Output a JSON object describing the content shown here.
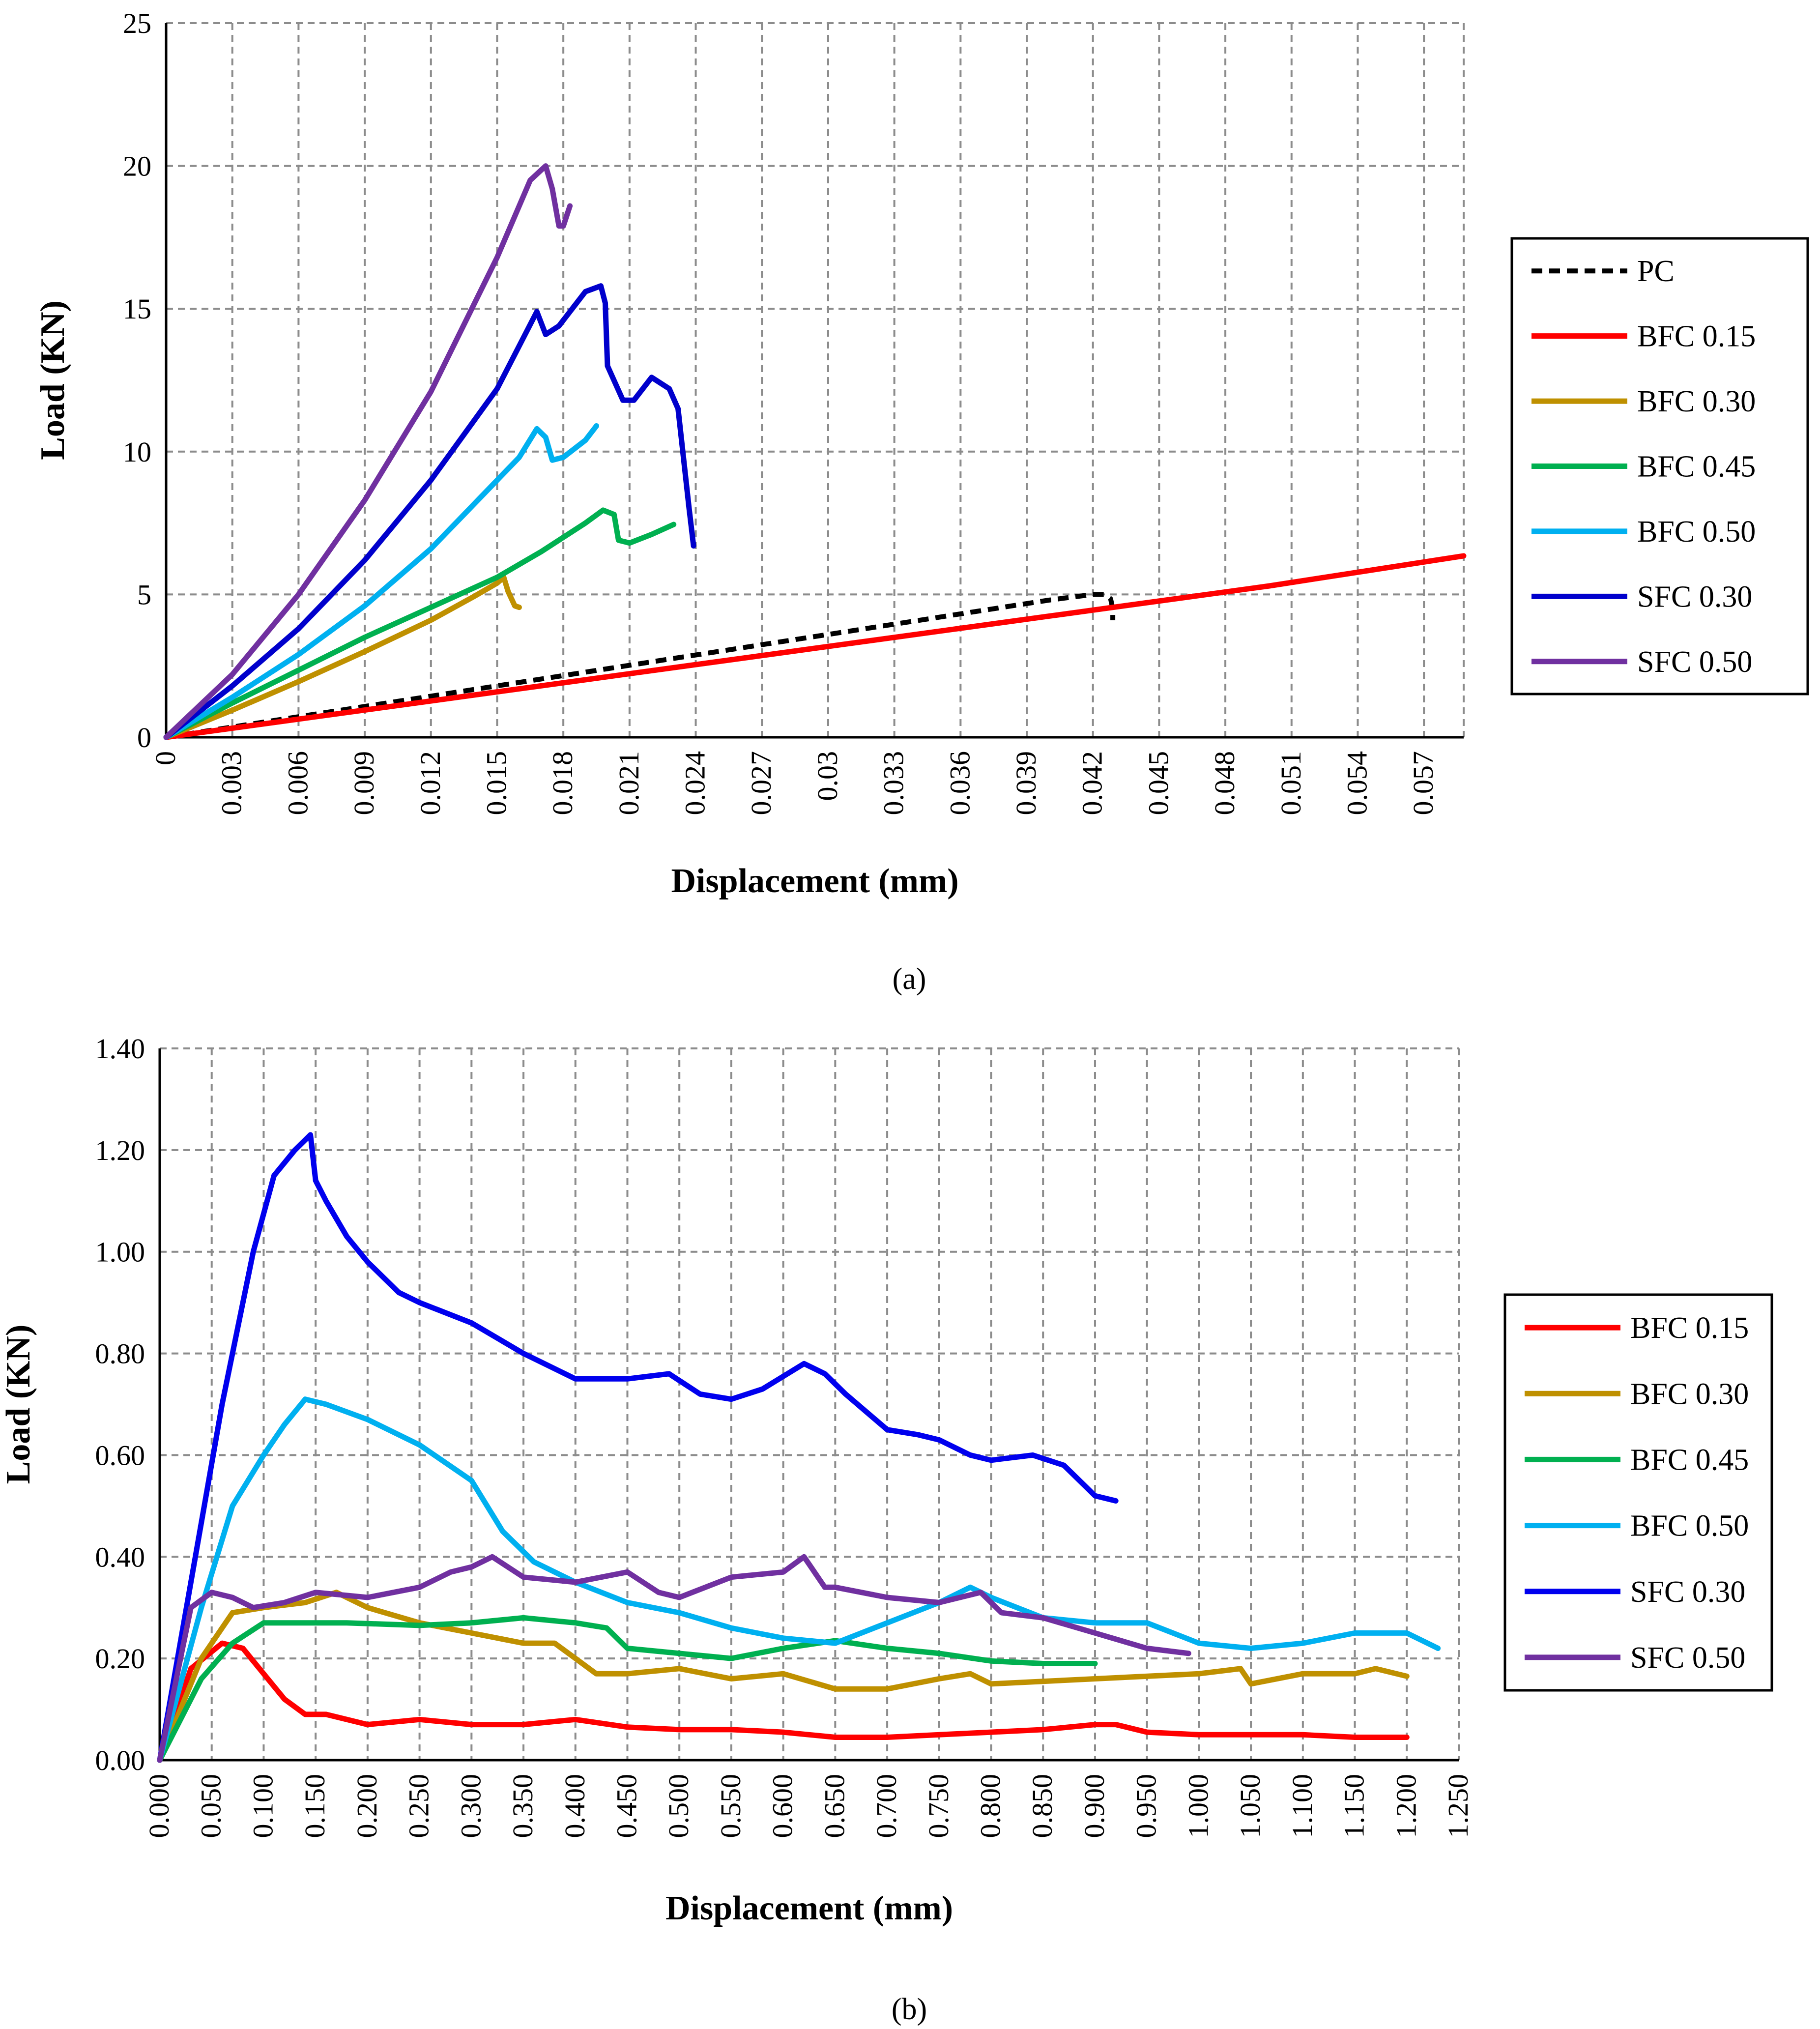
{
  "captions": {
    "a": "(a)",
    "b": "(b)"
  },
  "chart_data": [
    {
      "type": "line",
      "panel": "a",
      "xlabel": "Displacement (mm)",
      "ylabel": "Load (KN)",
      "xlim": [
        0,
        0.0588
      ],
      "ylim": [
        0,
        25
      ],
      "grid": true,
      "legend_position": "right",
      "x_ticks": [
        "0",
        "0.003",
        "0.006",
        "0.009",
        "0.012",
        "0.015",
        "0.018",
        "0.021",
        "0.024",
        "0.027",
        "0.03",
        "0.033",
        "0.036",
        "0.039",
        "0.042",
        "0.045",
        "0.048",
        "0.051",
        "0.054",
        "0.057"
      ],
      "y_ticks": [
        "0",
        "5",
        "10",
        "15",
        "20",
        "25"
      ],
      "series": [
        {
          "name": "PC",
          "color": "#000000",
          "dashed": true,
          "x": [
            0,
            0.005,
            0.01,
            0.015,
            0.02,
            0.025,
            0.03,
            0.035,
            0.04,
            0.042,
            0.0425,
            0.0428,
            0.0429,
            0.0429
          ],
          "y": [
            0,
            0.6,
            1.2,
            1.8,
            2.4,
            3.0,
            3.6,
            4.2,
            4.8,
            5.0,
            5.0,
            4.85,
            4.5,
            4.1
          ]
        },
        {
          "name": "BFC 0.15",
          "color": "#ff0000",
          "dashed": false,
          "x": [
            0,
            0.01,
            0.02,
            0.03,
            0.04,
            0.05,
            0.0588
          ],
          "y": [
            0,
            1.06,
            2.12,
            3.18,
            4.24,
            5.3,
            6.35
          ]
        },
        {
          "name": "BFC 0.30",
          "color": "#bf9000",
          "dashed": false,
          "x": [
            0,
            0.003,
            0.006,
            0.009,
            0.012,
            0.014,
            0.015,
            0.0153,
            0.0155,
            0.0158,
            0.016
          ],
          "y": [
            0,
            0.95,
            1.95,
            3.0,
            4.1,
            4.95,
            5.4,
            5.6,
            5.1,
            4.6,
            4.55
          ]
        },
        {
          "name": "BFC 0.45",
          "color": "#00b050",
          "dashed": false,
          "x": [
            0,
            0.003,
            0.006,
            0.009,
            0.012,
            0.015,
            0.017,
            0.019,
            0.0198,
            0.0203,
            0.0205,
            0.021,
            0.022,
            0.023
          ],
          "y": [
            0,
            1.2,
            2.35,
            3.5,
            4.55,
            5.6,
            6.5,
            7.5,
            7.95,
            7.8,
            6.9,
            6.8,
            7.1,
            7.45
          ]
        },
        {
          "name": "BFC 0.50",
          "color": "#00b0f0",
          "dashed": false,
          "x": [
            0,
            0.003,
            0.006,
            0.009,
            0.012,
            0.014,
            0.016,
            0.0168,
            0.0172,
            0.0175,
            0.018,
            0.019,
            0.0195
          ],
          "y": [
            0,
            1.4,
            2.9,
            4.6,
            6.6,
            8.2,
            9.8,
            10.8,
            10.5,
            9.7,
            9.8,
            10.4,
            10.9
          ]
        },
        {
          "name": "SFC 0.30",
          "color": "#0000cc",
          "dashed": false,
          "x": [
            0,
            0.003,
            0.006,
            0.009,
            0.012,
            0.015,
            0.0168,
            0.0172,
            0.0178,
            0.019,
            0.0197,
            0.0199,
            0.02,
            0.0207,
            0.0212,
            0.022,
            0.0228,
            0.0232,
            0.0237,
            0.0239
          ],
          "y": [
            0,
            1.8,
            3.8,
            6.2,
            9.0,
            12.2,
            14.9,
            14.1,
            14.4,
            15.6,
            15.8,
            15.2,
            13.0,
            11.8,
            11.8,
            12.6,
            12.2,
            11.5,
            8.0,
            6.7
          ]
        },
        {
          "name": "SFC 0.50",
          "color": "#7030a0",
          "dashed": false,
          "x": [
            0,
            0.003,
            0.006,
            0.009,
            0.012,
            0.015,
            0.0165,
            0.0172,
            0.0175,
            0.0178,
            0.018,
            0.0183
          ],
          "y": [
            0,
            2.2,
            5.0,
            8.3,
            12.1,
            16.8,
            19.5,
            20.0,
            19.2,
            17.9,
            17.9,
            18.6
          ]
        }
      ]
    },
    {
      "type": "line",
      "panel": "b",
      "xlabel": "Displacement (mm)",
      "ylabel": "Load (KN)",
      "xlim": [
        0,
        1.25
      ],
      "ylim": [
        0,
        1.4
      ],
      "grid": true,
      "legend_position": "right",
      "x_ticks": [
        "0.000",
        "0.050",
        "0.100",
        "0.150",
        "0.200",
        "0.250",
        "0.300",
        "0.350",
        "0.400",
        "0.450",
        "0.500",
        "0.550",
        "0.600",
        "0.650",
        "0.700",
        "0.750",
        "0.800",
        "0.850",
        "0.900",
        "0.950",
        "1.000",
        "1.050",
        "1.100",
        "1.150",
        "1.200",
        "1.250"
      ],
      "y_ticks": [
        "0.00",
        "0.20",
        "0.40",
        "0.60",
        "0.80",
        "1.00",
        "1.20",
        "1.40"
      ],
      "series": [
        {
          "name": "BFC 0.15",
          "color": "#ff0000",
          "dashed": false,
          "x": [
            0,
            0.03,
            0.06,
            0.08,
            0.1,
            0.12,
            0.14,
            0.16,
            0.2,
            0.25,
            0.3,
            0.35,
            0.4,
            0.45,
            0.5,
            0.55,
            0.6,
            0.65,
            0.7,
            0.75,
            0.8,
            0.85,
            0.9,
            0.92,
            0.95,
            1.0,
            1.05,
            1.1,
            1.15,
            1.2
          ],
          "y": [
            0,
            0.18,
            0.23,
            0.22,
            0.17,
            0.12,
            0.09,
            0.09,
            0.07,
            0.08,
            0.07,
            0.07,
            0.08,
            0.065,
            0.06,
            0.06,
            0.055,
            0.045,
            0.045,
            0.05,
            0.055,
            0.06,
            0.07,
            0.07,
            0.055,
            0.05,
            0.05,
            0.05,
            0.045,
            0.045
          ]
        },
        {
          "name": "BFC 0.30",
          "color": "#bf9000",
          "dashed": false,
          "x": [
            0,
            0.04,
            0.07,
            0.1,
            0.14,
            0.17,
            0.2,
            0.25,
            0.3,
            0.35,
            0.38,
            0.4,
            0.42,
            0.45,
            0.5,
            0.55,
            0.6,
            0.65,
            0.7,
            0.75,
            0.78,
            0.8,
            0.9,
            1.0,
            1.04,
            1.05,
            1.1,
            1.15,
            1.17,
            1.2
          ],
          "y": [
            0,
            0.2,
            0.29,
            0.3,
            0.31,
            0.33,
            0.3,
            0.27,
            0.25,
            0.23,
            0.23,
            0.2,
            0.17,
            0.17,
            0.18,
            0.16,
            0.17,
            0.14,
            0.14,
            0.16,
            0.17,
            0.15,
            0.16,
            0.17,
            0.18,
            0.15,
            0.17,
            0.17,
            0.18,
            0.165
          ]
        },
        {
          "name": "BFC 0.45",
          "color": "#00b050",
          "dashed": false,
          "x": [
            0,
            0.04,
            0.07,
            0.1,
            0.14,
            0.18,
            0.25,
            0.3,
            0.35,
            0.4,
            0.43,
            0.45,
            0.5,
            0.55,
            0.6,
            0.65,
            0.7,
            0.75,
            0.8,
            0.85,
            0.9
          ],
          "y": [
            0,
            0.16,
            0.23,
            0.27,
            0.27,
            0.27,
            0.265,
            0.27,
            0.28,
            0.27,
            0.26,
            0.22,
            0.21,
            0.2,
            0.22,
            0.235,
            0.22,
            0.21,
            0.195,
            0.19,
            0.19
          ]
        },
        {
          "name": "BFC 0.50",
          "color": "#00b0f0",
          "dashed": false,
          "x": [
            0,
            0.04,
            0.07,
            0.1,
            0.12,
            0.14,
            0.16,
            0.2,
            0.25,
            0.3,
            0.33,
            0.36,
            0.4,
            0.45,
            0.5,
            0.55,
            0.6,
            0.65,
            0.7,
            0.75,
            0.78,
            0.8,
            0.85,
            0.9,
            0.95,
            1.0,
            1.05,
            1.1,
            1.15,
            1.2,
            1.23
          ],
          "y": [
            0,
            0.3,
            0.5,
            0.6,
            0.66,
            0.71,
            0.7,
            0.67,
            0.62,
            0.55,
            0.45,
            0.39,
            0.35,
            0.31,
            0.29,
            0.26,
            0.24,
            0.23,
            0.27,
            0.31,
            0.34,
            0.32,
            0.28,
            0.27,
            0.27,
            0.23,
            0.22,
            0.23,
            0.25,
            0.25,
            0.22
          ]
        },
        {
          "name": "SFC 0.30",
          "color": "#0000ee",
          "dashed": false,
          "x": [
            0,
            0.03,
            0.06,
            0.09,
            0.11,
            0.13,
            0.145,
            0.15,
            0.16,
            0.18,
            0.2,
            0.23,
            0.25,
            0.3,
            0.35,
            0.4,
            0.45,
            0.49,
            0.52,
            0.55,
            0.58,
            0.62,
            0.64,
            0.66,
            0.7,
            0.73,
            0.75,
            0.78,
            0.8,
            0.84,
            0.87,
            0.9,
            0.92
          ],
          "y": [
            0,
            0.35,
            0.7,
            1.0,
            1.15,
            1.2,
            1.23,
            1.14,
            1.1,
            1.03,
            0.98,
            0.92,
            0.9,
            0.86,
            0.8,
            0.75,
            0.75,
            0.76,
            0.72,
            0.71,
            0.73,
            0.78,
            0.76,
            0.72,
            0.65,
            0.64,
            0.63,
            0.6,
            0.59,
            0.6,
            0.58,
            0.52,
            0.51
          ]
        },
        {
          "name": "SFC 0.50",
          "color": "#7030a0",
          "dashed": false,
          "x": [
            0,
            0.03,
            0.05,
            0.07,
            0.09,
            0.12,
            0.15,
            0.2,
            0.25,
            0.28,
            0.3,
            0.32,
            0.35,
            0.4,
            0.45,
            0.48,
            0.5,
            0.55,
            0.6,
            0.62,
            0.64,
            0.65,
            0.7,
            0.75,
            0.79,
            0.81,
            0.85,
            0.9,
            0.95,
            0.99
          ],
          "y": [
            0,
            0.3,
            0.33,
            0.32,
            0.3,
            0.31,
            0.33,
            0.32,
            0.34,
            0.37,
            0.38,
            0.4,
            0.36,
            0.35,
            0.37,
            0.33,
            0.32,
            0.36,
            0.37,
            0.4,
            0.34,
            0.34,
            0.32,
            0.31,
            0.33,
            0.29,
            0.28,
            0.25,
            0.22,
            0.21
          ]
        }
      ]
    }
  ]
}
